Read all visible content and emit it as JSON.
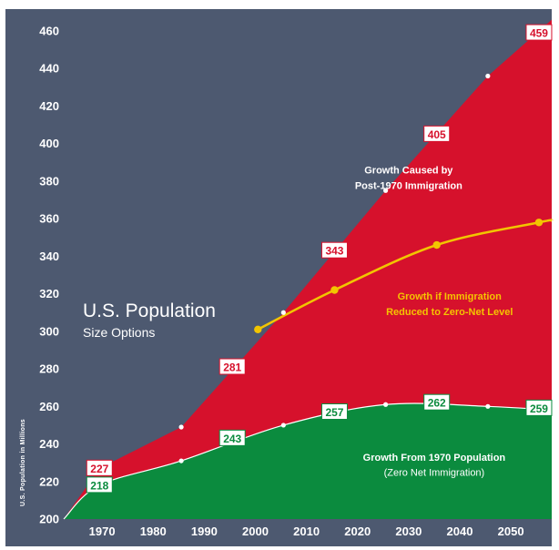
{
  "chart_data": {
    "type": "area",
    "title": "U.S. Population",
    "subtitle": "Size Options",
    "ylabel": "U.S. Population in Millions",
    "xlabel": "",
    "xlim": [
      1962.5,
      2058
    ],
    "ylim": [
      200,
      460
    ],
    "xticks": [
      1970,
      1980,
      1990,
      2000,
      2010,
      2020,
      2030,
      2040,
      2050
    ],
    "yticks": [
      200,
      220,
      240,
      260,
      280,
      300,
      320,
      340,
      360,
      380,
      400,
      420,
      440,
      460
    ],
    "grid": false,
    "series": [
      {
        "name": "Growth Caused by Post-1970 Immigration",
        "color": "#d6112c",
        "x": [
          1962.5,
          1969.5,
          1985.5,
          2005.5,
          2025.5,
          2045.5,
          2058
        ],
        "y": [
          200,
          227,
          249,
          310,
          375,
          436,
          466
        ]
      },
      {
        "name": "Growth if Immigration Reduced to Zero-Net Level",
        "color": "#f2c500",
        "x": [
          2000.5,
          2015.5,
          2035.5,
          2055.5,
          2058
        ],
        "y": [
          301,
          322,
          346,
          358,
          359
        ]
      },
      {
        "name": "Growth From 1970 Population",
        "color": "#0b8b3e",
        "x": [
          1962.5,
          1969.5,
          1985.5,
          2005.5,
          2025.5,
          2045.5,
          2058
        ],
        "y": [
          200,
          218,
          231,
          250,
          261,
          260,
          258
        ]
      }
    ],
    "data_labels": [
      {
        "text": "227",
        "x": 1969.5,
        "y": 227,
        "color": "#d6112c"
      },
      {
        "text": "281",
        "x": 1995.5,
        "y": 281,
        "color": "#d6112c"
      },
      {
        "text": "343",
        "x": 2015.5,
        "y": 343,
        "color": "#d6112c"
      },
      {
        "text": "405",
        "x": 2035.5,
        "y": 405,
        "color": "#d6112c"
      },
      {
        "text": "459",
        "x": 2055.5,
        "y": 459,
        "color": "#d6112c"
      },
      {
        "text": "218",
        "x": 1969.5,
        "y": 218,
        "color": "#0b8b3e"
      },
      {
        "text": "243",
        "x": 1995.5,
        "y": 243,
        "color": "#0b8b3e"
      },
      {
        "text": "257",
        "x": 2015.5,
        "y": 257,
        "color": "#0b8b3e"
      },
      {
        "text": "262",
        "x": 2035.5,
        "y": 262,
        "color": "#0b8b3e"
      },
      {
        "text": "259",
        "x": 2055.5,
        "y": 259,
        "color": "#0b8b3e"
      }
    ],
    "annotations": [
      {
        "lines": [
          "Growth Caused by",
          "Post-1970 Immigration"
        ],
        "x": 2030,
        "y": 384,
        "color": "#ffffff",
        "weight": "bold"
      },
      {
        "lines": [
          "Growth if Immigration",
          "Reduced to Zero-Net Level"
        ],
        "x": 2038,
        "y": 317,
        "color": "#f5c400",
        "weight": "bold"
      },
      {
        "lines": [
          "Growth From 1970 Population"
        ],
        "x": 2035,
        "y": 231,
        "color": "#ffffff",
        "weight": "bold"
      },
      {
        "lines": [
          "(Zero Net Immigration)"
        ],
        "x": 2035,
        "y": 223,
        "color": "#ffffff",
        "weight": "normal"
      }
    ],
    "background": "#4d5970"
  }
}
